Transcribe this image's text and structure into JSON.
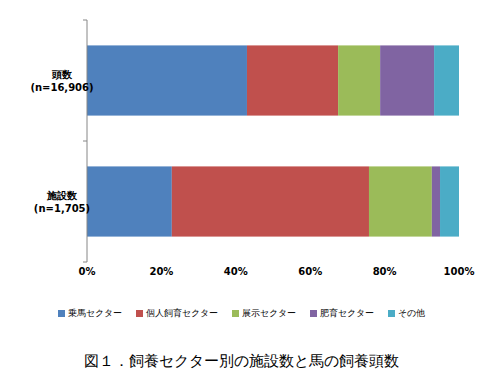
{
  "chart_data": {
    "type": "bar",
    "orientation": "horizontal",
    "stacked": true,
    "grid": false,
    "legend": "bottom",
    "title": "図１．飼養セクター別の施設数と馬の飼養頭数",
    "categories": [
      "頭数\n(n=16,906)",
      "施設数\n(n=1,705)"
    ],
    "series": [
      {
        "name": "乗馬セクター",
        "color": "#4f81bd",
        "values": [
          43.0,
          22.8
        ]
      },
      {
        "name": "個人飼育セクター",
        "color": "#c0504d",
        "values": [
          24.5,
          53.0
        ]
      },
      {
        "name": "展示セクター",
        "color": "#9bbb59",
        "values": [
          11.3,
          16.9
        ]
      },
      {
        "name": "肥育セクター",
        "color": "#8064a2",
        "values": [
          14.5,
          2.2
        ]
      },
      {
        "name": "その他",
        "color": "#4bacc6",
        "values": [
          6.7,
          5.1
        ]
      }
    ],
    "xlim": [
      0,
      100
    ],
    "xticks": [
      {
        "value": 0,
        "label": "0%"
      },
      {
        "value": 20,
        "label": "20%"
      },
      {
        "value": 40,
        "label": "40%"
      },
      {
        "value": 60,
        "label": "60%"
      },
      {
        "value": 80,
        "label": "80%"
      },
      {
        "value": 100,
        "label": "100%"
      }
    ]
  }
}
